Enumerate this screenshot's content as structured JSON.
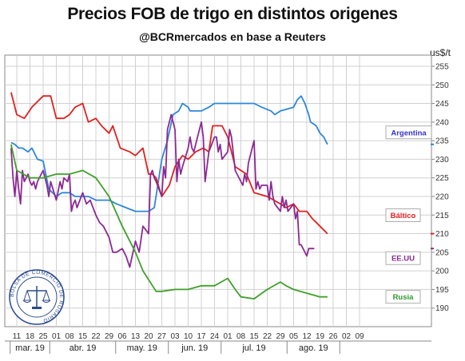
{
  "header": {
    "title": "Precios FOB de trigo en distintos origenes",
    "subtitle": "@BCRmercados en base a Reuters",
    "unit": "us$/t"
  },
  "chart_data": {
    "type": "line",
    "title": "Precios FOB de trigo en distintos origenes",
    "subtitle": "@BCRmercados en base a Reuters",
    "ylabel": "us$/t",
    "ylim": [
      185,
      258
    ],
    "yticks": [
      190,
      195,
      200,
      205,
      210,
      215,
      220,
      225,
      230,
      235,
      240,
      245,
      250,
      255
    ],
    "x_dates": [
      "Mar 11",
      "Mar 18",
      "Mar 25",
      "Apr 01",
      "Apr 08",
      "Apr 15",
      "Apr 22",
      "Apr 29",
      "May 06",
      "May 13",
      "May 20",
      "May 27",
      "Jun 03",
      "Jun 10",
      "Jun 17",
      "Jun 24",
      "Jul 01",
      "Jul 08",
      "Jul 15",
      "Jul 22",
      "Jul 29",
      "Aug 05",
      "Aug 12",
      "Aug 19",
      "Aug 26",
      "Sep 02",
      "Sep 09"
    ],
    "xtick_labels": [
      "11",
      "18",
      "25",
      "01",
      "08",
      "15",
      "22",
      "29",
      "06",
      "13",
      "20",
      "27",
      "03",
      "10",
      "17",
      "24",
      "01",
      "08",
      "15",
      "22",
      "29",
      "05",
      "12",
      "19",
      "26",
      "02",
      "09"
    ],
    "months": [
      {
        "label": "mar. 19",
        "start": 0,
        "end": 3
      },
      {
        "label": "abr. 19",
        "start": 3,
        "end": 8
      },
      {
        "label": "may. 19",
        "start": 8,
        "end": 12
      },
      {
        "label": "jun. 19",
        "start": 12,
        "end": 16
      },
      {
        "label": "jul. 19",
        "start": 16,
        "end": 21
      },
      {
        "label": "ago. 19",
        "start": 21,
        "end": 25
      }
    ],
    "grid": true,
    "series": [
      {
        "name": "Argentina",
        "color": "#2E86D9",
        "label_color": "#3333CC",
        "points": [
          [
            "Mar 08",
            234.5
          ],
          [
            "Mar 10",
            234
          ],
          [
            "Mar 12",
            233
          ],
          [
            "Mar 14",
            233
          ],
          [
            "Mar 17",
            232
          ],
          [
            "Mar 19",
            233
          ],
          [
            "Mar 22",
            230
          ],
          [
            "Mar 25",
            229.5
          ],
          [
            "Mar 28",
            222
          ],
          [
            "Apr 01",
            220
          ],
          [
            "Apr 04",
            221
          ],
          [
            "Apr 08",
            221
          ],
          [
            "Apr 11",
            220
          ],
          [
            "Apr 15",
            220
          ],
          [
            "Apr 18",
            220
          ],
          [
            "Apr 22",
            219
          ],
          [
            "Apr 29",
            219
          ],
          [
            "May 03",
            218
          ],
          [
            "May 08",
            217
          ],
          [
            "May 13",
            216
          ],
          [
            "May 20",
            216
          ],
          [
            "May 23",
            217
          ],
          [
            "May 27",
            230
          ],
          [
            "May 30",
            235
          ],
          [
            "Jun 02",
            242
          ],
          [
            "Jun 05",
            243
          ],
          [
            "Jun 07",
            245
          ],
          [
            "Jun 10",
            244
          ],
          [
            "Jun 11",
            243
          ],
          [
            "Jun 17",
            243
          ],
          [
            "Jun 21",
            244
          ],
          [
            "Jun 24",
            245
          ],
          [
            "Jul 01",
            245
          ],
          [
            "Jul 08",
            245
          ],
          [
            "Jul 15",
            245
          ],
          [
            "Jul 19",
            244
          ],
          [
            "Jul 24",
            243
          ],
          [
            "Jul 26",
            242
          ],
          [
            "Jul 29",
            243
          ],
          [
            "Aug 05",
            244
          ],
          [
            "Aug 07",
            246
          ],
          [
            "Aug 09",
            247
          ],
          [
            "Aug 11",
            245
          ],
          [
            "Aug 13",
            242
          ],
          [
            "Aug 14",
            240
          ],
          [
            "Aug 17",
            239
          ],
          [
            "Aug 19",
            237
          ],
          [
            "Aug 21",
            236
          ],
          [
            "Aug 23",
            234
          ]
        ],
        "end_value": 234
      },
      {
        "name": "Báltico",
        "color": "#E02020",
        "label_color": "#E02020",
        "points": [
          [
            "Mar 08",
            248
          ],
          [
            "Mar 11",
            242
          ],
          [
            "Mar 15",
            241
          ],
          [
            "Mar 19",
            244
          ],
          [
            "Mar 25",
            247
          ],
          [
            "Mar 29",
            247
          ],
          [
            "Apr 01",
            241
          ],
          [
            "Apr 05",
            241
          ],
          [
            "Apr 08",
            242
          ],
          [
            "Apr 11",
            244
          ],
          [
            "Apr 15",
            245
          ],
          [
            "Apr 18",
            240
          ],
          [
            "Apr 22",
            241
          ],
          [
            "Apr 25",
            239
          ],
          [
            "Apr 29",
            237
          ],
          [
            "May 01",
            239
          ],
          [
            "May 05",
            233
          ],
          [
            "May 10",
            232
          ],
          [
            "May 13",
            231
          ],
          [
            "May 17",
            233
          ],
          [
            "May 20",
            226
          ],
          [
            "May 22",
            226
          ],
          [
            "May 24",
            225
          ],
          [
            "May 27",
            220
          ],
          [
            "May 31",
            223
          ],
          [
            "Jun 03",
            228
          ],
          [
            "Jun 07",
            231
          ],
          [
            "Jun 10",
            230
          ],
          [
            "Jun 14",
            232
          ],
          [
            "Jun 18",
            233
          ],
          [
            "Jun 21",
            232
          ],
          [
            "Jun 23",
            239
          ],
          [
            "Jun 28",
            239
          ],
          [
            "Jul 01",
            236
          ],
          [
            "Jul 05",
            228
          ],
          [
            "Jul 08",
            227
          ],
          [
            "Jul 11",
            226
          ],
          [
            "Jul 15",
            221
          ],
          [
            "Jul 22",
            220
          ],
          [
            "Jul 29",
            218
          ],
          [
            "Aug 01",
            217
          ],
          [
            "Aug 05",
            218
          ],
          [
            "Aug 08",
            216
          ],
          [
            "Aug 12",
            216
          ],
          [
            "Aug 15",
            214
          ],
          [
            "Aug 19",
            212
          ],
          [
            "Aug 23",
            210
          ]
        ],
        "end_value": 210
      },
      {
        "name": "EE.UU",
        "color": "#8B2A93",
        "label_color": "#8B2A93",
        "points": [
          [
            "Mar 08",
            233
          ],
          [
            "Mar 09",
            225
          ],
          [
            "Mar 10",
            220
          ],
          [
            "Mar 11",
            227
          ],
          [
            "Mar 12",
            222
          ],
          [
            "Mar 13",
            218
          ],
          [
            "Mar 14",
            227
          ],
          [
            "Mar 15",
            224
          ],
          [
            "Mar 17",
            226
          ],
          [
            "Mar 18",
            224
          ],
          [
            "Mar 19",
            223
          ],
          [
            "Mar 20",
            224
          ],
          [
            "Mar 21",
            222
          ],
          [
            "Mar 22",
            224
          ],
          [
            "Mar 24",
            226
          ],
          [
            "Mar 25",
            227
          ],
          [
            "Mar 26",
            225
          ],
          [
            "Mar 27",
            223
          ],
          [
            "Mar 28",
            220
          ],
          [
            "Mar 29",
            224
          ],
          [
            "Apr 01",
            219
          ],
          [
            "Apr 03",
            224
          ],
          [
            "Apr 04",
            222
          ],
          [
            "Apr 05",
            225
          ],
          [
            "Apr 07",
            224
          ],
          [
            "Apr 08",
            226
          ],
          [
            "Apr 09",
            216
          ],
          [
            "Apr 10",
            218
          ],
          [
            "Apr 11",
            219
          ],
          [
            "Apr 12",
            217
          ],
          [
            "Apr 15",
            221
          ],
          [
            "Apr 17",
            218
          ],
          [
            "Apr 19",
            219
          ],
          [
            "Apr 22",
            215
          ],
          [
            "Apr 24",
            213
          ],
          [
            "Apr 26",
            212
          ],
          [
            "Apr 29",
            209
          ],
          [
            "May 01",
            205
          ],
          [
            "May 03",
            205
          ],
          [
            "May 06",
            206
          ],
          [
            "May 08",
            204
          ],
          [
            "May 10",
            201
          ],
          [
            "May 13",
            208
          ],
          [
            "May 15",
            205
          ],
          [
            "May 17",
            212
          ],
          [
            "May 20",
            210
          ],
          [
            "May 21",
            226
          ],
          [
            "May 22",
            227
          ],
          [
            "May 23",
            225
          ],
          [
            "May 24",
            224
          ],
          [
            "May 27",
            220
          ],
          [
            "May 28",
            228
          ],
          [
            "May 29",
            225
          ],
          [
            "May 30",
            238
          ],
          [
            "Jun 01",
            242
          ],
          [
            "Jun 03",
            238
          ],
          [
            "Jun 04",
            224
          ],
          [
            "Jun 05",
            230
          ],
          [
            "Jun 06",
            226
          ],
          [
            "Jun 07",
            228
          ],
          [
            "Jun 10",
            233
          ],
          [
            "Jun 11",
            236
          ],
          [
            "Jun 12",
            233
          ],
          [
            "Jun 13",
            232
          ],
          [
            "Jun 14",
            234
          ],
          [
            "Jun 17",
            240
          ],
          [
            "Jun 18",
            236
          ],
          [
            "Jun 19",
            224
          ],
          [
            "Jun 20",
            228
          ],
          [
            "Jun 21",
            232
          ],
          [
            "Jun 24",
            236
          ],
          [
            "Jun 25",
            236
          ],
          [
            "Jun 26",
            232
          ],
          [
            "Jun 27",
            234
          ],
          [
            "Jun 28",
            230
          ],
          [
            "Jul 01",
            232
          ],
          [
            "Jul 02",
            238
          ],
          [
            "Jul 03",
            236
          ],
          [
            "Jul 05",
            227
          ],
          [
            "Jul 08",
            224
          ],
          [
            "Jul 09",
            223
          ],
          [
            "Jul 10",
            226
          ],
          [
            "Jul 11",
            224
          ],
          [
            "Jul 12",
            229
          ],
          [
            "Jul 15",
            235
          ],
          [
            "Jul 16",
            222
          ],
          [
            "Jul 17",
            224
          ],
          [
            "Jul 18",
            222
          ],
          [
            "Jul 19",
            223
          ],
          [
            "Jul 22",
            223
          ],
          [
            "Jul 23",
            219
          ],
          [
            "Jul 24",
            224
          ],
          [
            "Jul 25",
            220
          ],
          [
            "Jul 26",
            218
          ],
          [
            "Jul 29",
            216
          ],
          [
            "Jul 30",
            220
          ],
          [
            "Jul 31",
            217
          ],
          [
            "Aug 01",
            219
          ],
          [
            "Aug 02",
            216
          ],
          [
            "Aug 05",
            218
          ],
          [
            "Aug 06",
            214
          ],
          [
            "Aug 07",
            216
          ],
          [
            "Aug 08",
            207
          ],
          [
            "Aug 09",
            207
          ],
          [
            "Aug 12",
            204
          ],
          [
            "Aug 13",
            206
          ],
          [
            "Aug 15",
            206
          ],
          [
            "Aug 16",
            206
          ]
        ],
        "end_value": 206
      },
      {
        "name": "Rusia",
        "color": "#3FA02A",
        "label_color": "#2E9A2E",
        "points": [
          [
            "Mar 08",
            234
          ],
          [
            "Mar 11",
            227
          ],
          [
            "Mar 18",
            225
          ],
          [
            "Mar 25",
            225
          ],
          [
            "Apr 01",
            226
          ],
          [
            "Apr 08",
            226
          ],
          [
            "Apr 15",
            227
          ],
          [
            "Apr 22",
            225
          ],
          [
            "Apr 29",
            220
          ],
          [
            "May 06",
            212
          ],
          [
            "May 13",
            205
          ],
          [
            "May 17",
            200
          ],
          [
            "May 24",
            194.5
          ],
          [
            "May 27",
            194.5
          ],
          [
            "Jun 03",
            195
          ],
          [
            "Jun 10",
            195
          ],
          [
            "Jun 17",
            196
          ],
          [
            "Jun 24",
            196
          ],
          [
            "Jul 01",
            198
          ],
          [
            "Jul 05",
            195
          ],
          [
            "Jul 08",
            193
          ],
          [
            "Jul 15",
            192.5
          ],
          [
            "Jul 22",
            195
          ],
          [
            "Jul 29",
            197
          ],
          [
            "Aug 01",
            196
          ],
          [
            "Aug 05",
            195
          ],
          [
            "Aug 12",
            194
          ],
          [
            "Aug 19",
            193
          ],
          [
            "Aug 23",
            193
          ]
        ],
        "end_value": null
      }
    ]
  },
  "logo": {
    "text": "BOLSA DE COMERCIO DE ROSARIO"
  }
}
